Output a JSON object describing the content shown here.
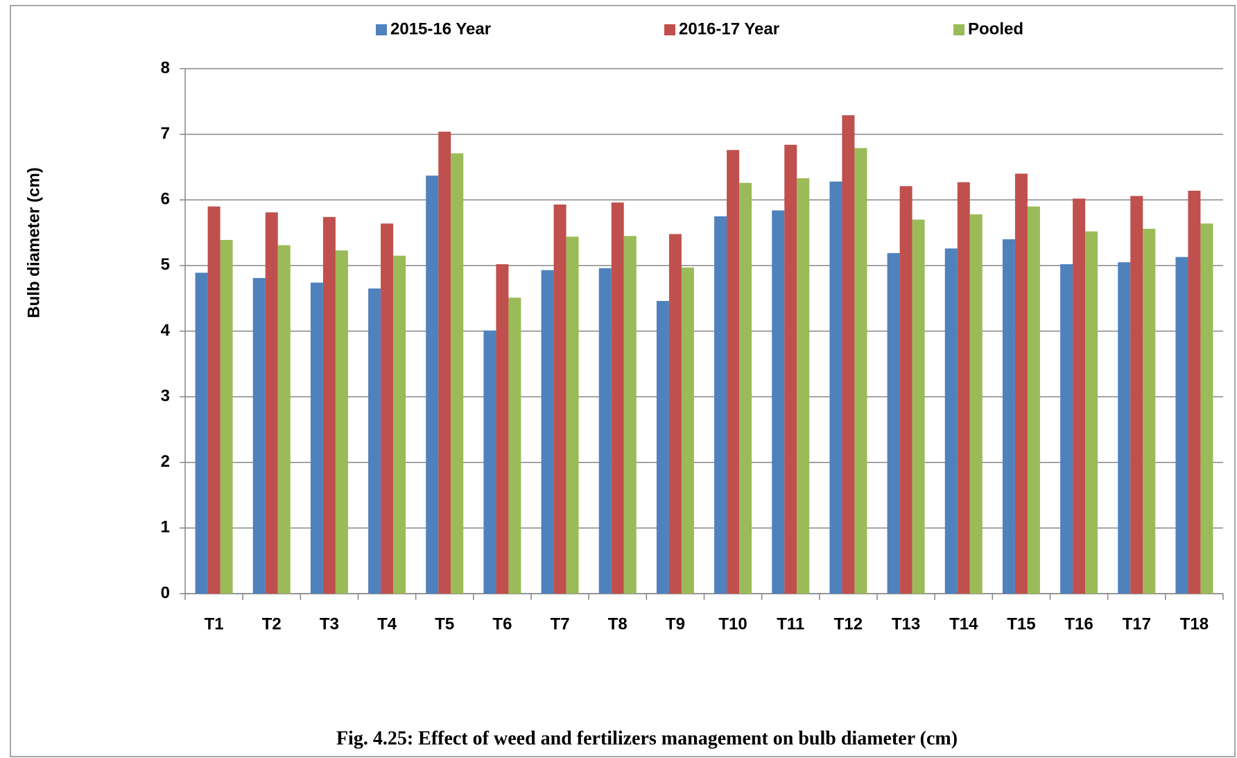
{
  "chart_data": {
    "type": "bar",
    "title": "Fig. 4.25: Effect of weed and fertilizers management on bulb diameter (cm)",
    "y_label": "Bulb diameter (cm)",
    "categories": [
      "T1",
      "T2",
      "T3",
      "T4",
      "T5",
      "T6",
      "T7",
      "T8",
      "T9",
      "T10",
      "T11",
      "T12",
      "T13",
      "T14",
      "T15",
      "T16",
      "T17",
      "T18"
    ],
    "series": [
      {
        "name": "2015-16 Year",
        "color": "#4f81bd",
        "values": [
          4.89,
          4.81,
          4.74,
          4.65,
          6.37,
          4.01,
          4.93,
          4.96,
          4.46,
          5.75,
          5.84,
          6.28,
          5.19,
          5.26,
          5.4,
          5.02,
          5.05,
          5.13
        ]
      },
      {
        "name": "2016-17 Year",
        "color": "#c0504d",
        "values": [
          5.9,
          5.81,
          5.74,
          5.64,
          7.04,
          5.02,
          5.93,
          5.96,
          5.48,
          6.76,
          6.84,
          7.29,
          6.21,
          6.27,
          6.4,
          6.02,
          6.06,
          6.14
        ]
      },
      {
        "name": "Pooled",
        "color": "#9bbb59",
        "values": [
          5.39,
          5.31,
          5.23,
          5.15,
          6.71,
          4.51,
          5.44,
          5.45,
          4.97,
          6.26,
          6.33,
          6.79,
          5.7,
          5.78,
          5.9,
          5.52,
          5.56,
          5.64
        ]
      }
    ],
    "ylim": [
      0,
      8
    ],
    "yticks": [
      0,
      1,
      2,
      3,
      4,
      5,
      6,
      7,
      8
    ],
    "grid": true,
    "legend": "top"
  }
}
